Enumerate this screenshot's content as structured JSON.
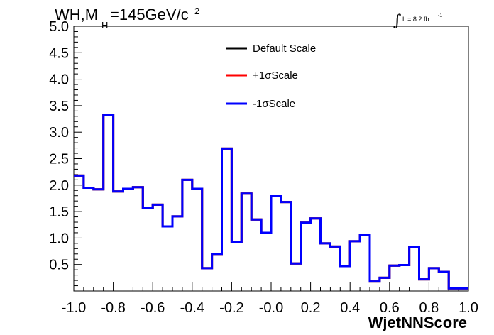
{
  "title": {
    "main": "WH,M",
    "sub": "H",
    "value": "=145GeV/c",
    "sup": "2"
  },
  "lumi": {
    "integral": "∫",
    "text": "L = 8.2 fb",
    "sup": "-1"
  },
  "colors": {
    "axis": "#000000",
    "default": "#000000",
    "plus": "#ff0000",
    "minus": "#0000ff"
  },
  "chart_data": {
    "type": "line",
    "drawstyle": "steps",
    "xlabel": "WjetNNScore",
    "ylabel": "",
    "xlim": [
      -1.0,
      1.0
    ],
    "ylim": [
      0.0,
      5.0
    ],
    "x_ticks": [
      "-1.0",
      "-0.8",
      "-0.6",
      "-0.4",
      "-0.2",
      "-0.0",
      "0.2",
      "0.4",
      "0.6",
      "0.8",
      "1.0"
    ],
    "y_ticks": [
      "0.5",
      "1.0",
      "1.5",
      "2.0",
      "2.5",
      "3.0",
      "3.5",
      "4.0",
      "4.5",
      "5.0"
    ],
    "legend_position": "top-center",
    "bin_edges": [
      -1.0,
      -0.95,
      -0.9,
      -0.85,
      -0.8,
      -0.75,
      -0.7,
      -0.65,
      -0.6,
      -0.55,
      -0.5,
      -0.45,
      -0.4,
      -0.35,
      -0.3,
      -0.25,
      -0.2,
      -0.15,
      -0.1,
      -0.05,
      0.0,
      0.05,
      0.1,
      0.15,
      0.2,
      0.25,
      0.3,
      0.35,
      0.4,
      0.45,
      0.5,
      0.55,
      0.6,
      0.65,
      0.7,
      0.75,
      0.8,
      0.85,
      0.9,
      0.95,
      1.0
    ],
    "series": [
      {
        "name": "Default Scale",
        "color": "#000000",
        "values": [
          2.18,
          1.95,
          1.92,
          3.32,
          1.88,
          1.93,
          1.96,
          1.57,
          1.63,
          1.22,
          1.41,
          2.1,
          1.93,
          0.43,
          0.7,
          2.69,
          0.93,
          1.84,
          1.35,
          1.1,
          1.79,
          1.68,
          0.52,
          1.29,
          1.37,
          0.9,
          0.84,
          0.47,
          0.94,
          1.06,
          0.18,
          0.25,
          0.48,
          0.49,
          0.83,
          0.22,
          0.43,
          0.36,
          0.05,
          0.05
        ]
      },
      {
        "name": "+1σScale",
        "color": "#ff0000",
        "values": [
          2.18,
          1.95,
          1.92,
          3.32,
          1.88,
          1.93,
          1.96,
          1.57,
          1.63,
          1.22,
          1.41,
          2.1,
          1.93,
          0.43,
          0.7,
          2.69,
          0.93,
          1.84,
          1.35,
          1.1,
          1.79,
          1.68,
          0.52,
          1.29,
          1.37,
          0.9,
          0.84,
          0.47,
          0.94,
          1.06,
          0.18,
          0.25,
          0.48,
          0.49,
          0.83,
          0.22,
          0.43,
          0.36,
          0.05,
          0.05
        ]
      },
      {
        "name": "-1σScale",
        "color": "#0000ff",
        "values": [
          2.18,
          1.95,
          1.92,
          3.32,
          1.88,
          1.93,
          1.96,
          1.57,
          1.63,
          1.22,
          1.41,
          2.1,
          1.93,
          0.43,
          0.7,
          2.69,
          0.93,
          1.84,
          1.35,
          1.1,
          1.79,
          1.68,
          0.52,
          1.29,
          1.37,
          0.9,
          0.84,
          0.47,
          0.94,
          1.06,
          0.18,
          0.25,
          0.48,
          0.49,
          0.83,
          0.22,
          0.43,
          0.36,
          0.05,
          0.05
        ]
      }
    ]
  }
}
